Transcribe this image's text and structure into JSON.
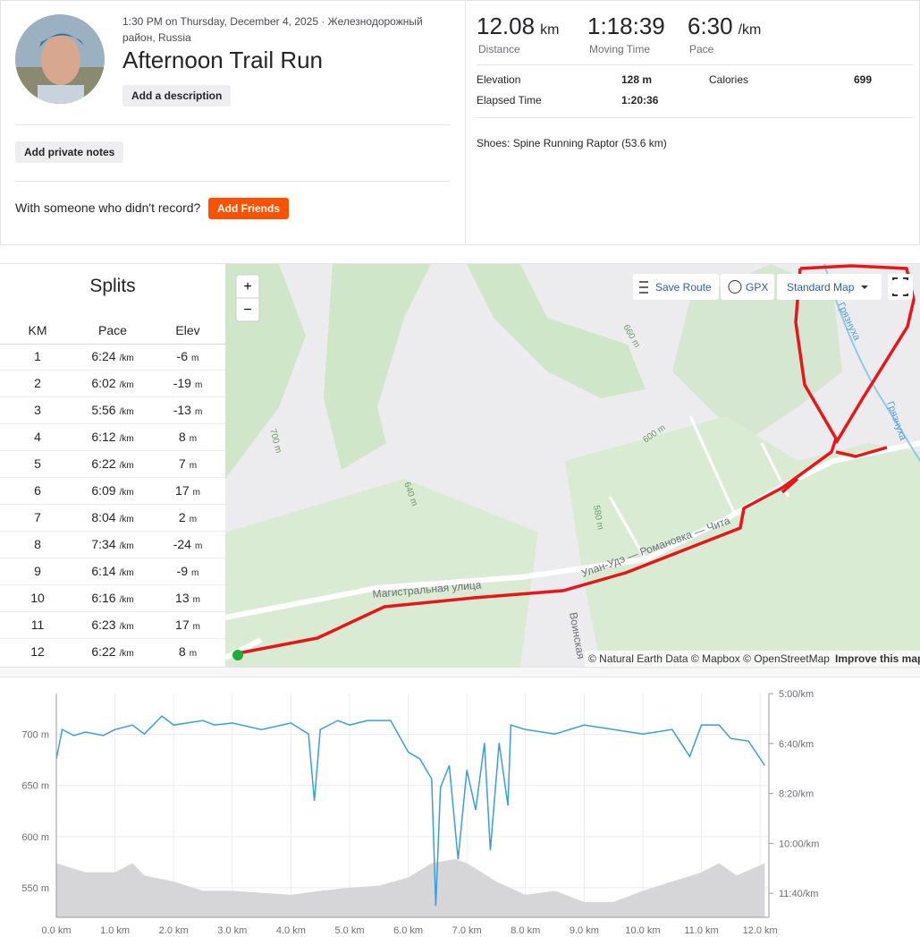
{
  "activity": {
    "date_location": "1:30 PM on Thursday, December 4, 2025 · Железнодорожный район, Russia",
    "title": "Afternoon Trail Run",
    "add_description": "Add a description",
    "add_private_notes": "Add private notes",
    "friends_prompt": "With someone who didn't record?",
    "add_friends": "Add Friends"
  },
  "stats": {
    "primary": [
      {
        "value": 12.08,
        "unit": "km",
        "label": "Distance"
      },
      {
        "value": "1:18:39",
        "label": "Moving Time"
      },
      {
        "value": "6:30",
        "unit": "/km",
        "label": "Pace"
      }
    ],
    "secondary": [
      {
        "label": "Elevation",
        "value": "128 m"
      },
      {
        "label": "Calories",
        "value": 699
      },
      {
        "label": "Elapsed Time",
        "value": "1:20:36"
      }
    ],
    "shoes": "Shoes: Spine Running Raptor (53.6 km)"
  },
  "splits": {
    "title": "Splits",
    "columns": [
      "KM",
      "Pace",
      "Elev"
    ],
    "pace_unit": "/km",
    "elev_unit": "m",
    "rows": [
      {
        "km": 1,
        "pace": "6:24",
        "elev": -6
      },
      {
        "km": 2,
        "pace": "6:02",
        "elev": -19
      },
      {
        "km": 3,
        "pace": "5:56",
        "elev": -13
      },
      {
        "km": 4,
        "pace": "6:12",
        "elev": 8
      },
      {
        "km": 5,
        "pace": "6:22",
        "elev": 7
      },
      {
        "km": 6,
        "pace": "6:09",
        "elev": 17
      },
      {
        "km": 7,
        "pace": "8:04",
        "elev": 2
      },
      {
        "km": 8,
        "pace": "7:34",
        "elev": -24
      },
      {
        "km": 9,
        "pace": "6:14",
        "elev": -9
      },
      {
        "km": 10,
        "pace": "6:16",
        "elev": 13
      },
      {
        "km": 11,
        "pace": "6:23",
        "elev": 17
      },
      {
        "km": 12,
        "pace": "6:22",
        "elev": 8
      }
    ]
  },
  "map": {
    "zoom_in": "+",
    "zoom_out": "−",
    "save_route": "Save Route",
    "gpx": "GPX",
    "map_style": "Standard Map",
    "attribution": "© Natural Earth Data © Mapbox © OpenStreetMap",
    "improve": "Improve this map",
    "labels": [
      "Магистральная улица",
      "Улан-Удэ — Романовка — Чита",
      "Воинская",
      "Грязнуха",
      "Грязнуха",
      "660 m",
      "700 m",
      "640 m",
      "600 m",
      "580 m"
    ]
  },
  "profile": {
    "xlim": [
      0,
      12.15
    ],
    "ylim": [
      521,
      740
    ],
    "y2lim": [
      300,
      748
    ],
    "xticks": [
      {
        "value": 0,
        "label": "0.0 km"
      },
      {
        "value": 1,
        "label": "1.0 km"
      },
      {
        "value": 2,
        "label": "2.0 km"
      },
      {
        "value": 3,
        "label": "3.0 km"
      },
      {
        "value": 4,
        "label": "4.0 km"
      },
      {
        "value": 5,
        "label": "5.0 km"
      },
      {
        "value": 6,
        "label": "6.0 km"
      },
      {
        "value": 7,
        "label": "7.0 km"
      },
      {
        "value": 8,
        "label": "8.0 km"
      },
      {
        "value": 9,
        "label": "9.0 km"
      },
      {
        "value": 10,
        "label": "10.0 km"
      },
      {
        "value": 11,
        "label": "11.0 km"
      },
      {
        "value": 12,
        "label": "12.0 km"
      }
    ],
    "yticks": [
      {
        "value": 550,
        "label": "550 m"
      },
      {
        "value": 600,
        "label": "600 m"
      },
      {
        "value": 650,
        "label": "650 m"
      },
      {
        "value": 700,
        "label": "700 m"
      }
    ],
    "y2ticks": [
      {
        "value": 300,
        "label": "5:00/km"
      },
      {
        "value": 400,
        "label": "6:40/km"
      },
      {
        "value": 500,
        "label": "8:20/km"
      },
      {
        "value": 600,
        "label": "10:00/km"
      },
      {
        "value": 700,
        "label": "11:40/km"
      }
    ],
    "elevation": {
      "color": "#d6d6d9",
      "x": [
        0,
        0.5,
        1,
        1.3,
        1.5,
        2,
        2.5,
        3,
        3.5,
        4,
        4.5,
        5,
        5.5,
        6,
        6.4,
        6.8,
        7,
        7.5,
        8,
        8.5,
        9,
        9.5,
        10,
        10.5,
        11,
        11.3,
        11.6,
        12.08
      ],
      "values": [
        574,
        565,
        565,
        574,
        562,
        556,
        547,
        547,
        545,
        543,
        547,
        550,
        552,
        560,
        574,
        578,
        574,
        556,
        543,
        547,
        536,
        536,
        547,
        556,
        565,
        574,
        562,
        574
      ]
    },
    "pace": {
      "color": "#3a9fd6",
      "x": [
        0,
        0.1,
        0.3,
        0.5,
        0.8,
        1,
        1.3,
        1.5,
        1.8,
        2,
        2.5,
        2.7,
        3,
        3.5,
        4,
        4.3,
        4.4,
        4.5,
        4.8,
        5,
        5.3,
        5.7,
        6,
        6.2,
        6.4,
        6.47,
        6.55,
        6.7,
        6.85,
        7,
        7.15,
        7.3,
        7.4,
        7.55,
        7.7,
        7.75,
        8,
        8.5,
        9,
        9.5,
        10,
        10.5,
        10.8,
        11,
        11.3,
        11.5,
        11.8,
        12.08
      ],
      "values": [
        431,
        372,
        384,
        377,
        384,
        372,
        363,
        381,
        345,
        363,
        354,
        363,
        359,
        372,
        359,
        381,
        515,
        372,
        354,
        363,
        354,
        354,
        417,
        431,
        471,
        725,
        488,
        444,
        632,
        453,
        533,
        399,
        614,
        399,
        524,
        363,
        372,
        381,
        363,
        372,
        381,
        372,
        426,
        363,
        363,
        390,
        395,
        444
      ]
    }
  }
}
